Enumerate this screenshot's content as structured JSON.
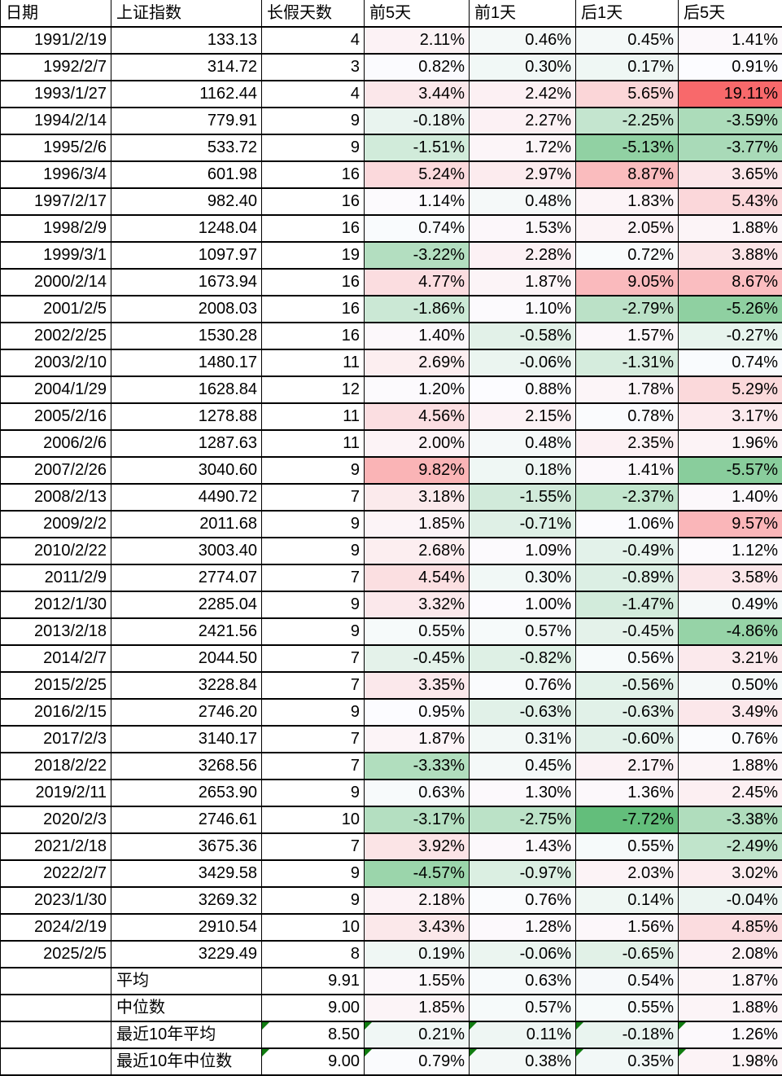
{
  "chart_data": {
    "type": "table",
    "columns": [
      "日期",
      "上证指数",
      "长假天数",
      "前5天",
      "前1天",
      "后1天",
      "后5天"
    ],
    "rows": [
      {
        "date": "1991/2/19",
        "index": "133.13",
        "days": "4",
        "pre5": 2.11,
        "pre1": 0.46,
        "post1": 0.45,
        "post5": 1.41
      },
      {
        "date": "1992/2/7",
        "index": "314.72",
        "days": "3",
        "pre5": 0.82,
        "pre1": 0.3,
        "post1": 0.17,
        "post5": 0.91
      },
      {
        "date": "1993/1/27",
        "index": "1162.44",
        "days": "4",
        "pre5": 3.44,
        "pre1": 2.42,
        "post1": 5.65,
        "post5": 19.11
      },
      {
        "date": "1994/2/14",
        "index": "779.91",
        "days": "9",
        "pre5": -0.18,
        "pre1": 2.27,
        "post1": -2.25,
        "post5": -3.59
      },
      {
        "date": "1995/2/6",
        "index": "533.72",
        "days": "9",
        "pre5": -1.51,
        "pre1": 1.72,
        "post1": -5.13,
        "post5": -3.77
      },
      {
        "date": "1996/3/4",
        "index": "601.98",
        "days": "16",
        "pre5": 5.24,
        "pre1": 2.97,
        "post1": 8.87,
        "post5": 3.65
      },
      {
        "date": "1997/2/17",
        "index": "982.40",
        "days": "16",
        "pre5": 1.14,
        "pre1": 0.48,
        "post1": 1.83,
        "post5": 5.43
      },
      {
        "date": "1998/2/9",
        "index": "1248.04",
        "days": "16",
        "pre5": 0.74,
        "pre1": 1.53,
        "post1": 2.05,
        "post5": 1.88
      },
      {
        "date": "1999/3/1",
        "index": "1097.97",
        "days": "19",
        "pre5": -3.22,
        "pre1": 2.28,
        "post1": 0.72,
        "post5": 3.88
      },
      {
        "date": "2000/2/14",
        "index": "1673.94",
        "days": "16",
        "pre5": 4.77,
        "pre1": 1.87,
        "post1": 9.05,
        "post5": 8.67
      },
      {
        "date": "2001/2/5",
        "index": "2008.03",
        "days": "16",
        "pre5": -1.86,
        "pre1": 1.1,
        "post1": -2.79,
        "post5": -5.26
      },
      {
        "date": "2002/2/25",
        "index": "1530.28",
        "days": "16",
        "pre5": 1.4,
        "pre1": -0.58,
        "post1": 1.57,
        "post5": -0.27
      },
      {
        "date": "2003/2/10",
        "index": "1480.17",
        "days": "11",
        "pre5": 2.69,
        "pre1": -0.06,
        "post1": -1.31,
        "post5": 0.74
      },
      {
        "date": "2004/1/29",
        "index": "1628.84",
        "days": "12",
        "pre5": 1.2,
        "pre1": 0.88,
        "post1": 1.78,
        "post5": 5.29
      },
      {
        "date": "2005/2/16",
        "index": "1278.88",
        "days": "11",
        "pre5": 4.56,
        "pre1": 2.15,
        "post1": 0.78,
        "post5": 3.17
      },
      {
        "date": "2006/2/6",
        "index": "1287.63",
        "days": "11",
        "pre5": 2.0,
        "pre1": 0.48,
        "post1": 2.35,
        "post5": 1.96
      },
      {
        "date": "2007/2/26",
        "index": "3040.60",
        "days": "9",
        "pre5": 9.82,
        "pre1": 0.18,
        "post1": 1.41,
        "post5": -5.57
      },
      {
        "date": "2008/2/13",
        "index": "4490.72",
        "days": "7",
        "pre5": 3.18,
        "pre1": -1.55,
        "post1": -2.37,
        "post5": 1.4
      },
      {
        "date": "2009/2/2",
        "index": "2011.68",
        "days": "9",
        "pre5": 1.85,
        "pre1": -0.71,
        "post1": 1.06,
        "post5": 9.57
      },
      {
        "date": "2010/2/22",
        "index": "3003.40",
        "days": "9",
        "pre5": 2.68,
        "pre1": 1.09,
        "post1": -0.49,
        "post5": 1.12
      },
      {
        "date": "2011/2/9",
        "index": "2774.07",
        "days": "7",
        "pre5": 4.54,
        "pre1": 0.3,
        "post1": -0.89,
        "post5": 3.58
      },
      {
        "date": "2012/1/30",
        "index": "2285.04",
        "days": "9",
        "pre5": 3.32,
        "pre1": 1.0,
        "post1": -1.47,
        "post5": 0.49
      },
      {
        "date": "2013/2/18",
        "index": "2421.56",
        "days": "9",
        "pre5": 0.55,
        "pre1": 0.57,
        "post1": -0.45,
        "post5": -4.86
      },
      {
        "date": "2014/2/7",
        "index": "2044.50",
        "days": "7",
        "pre5": -0.45,
        "pre1": -0.82,
        "post1": 0.56,
        "post5": 3.21
      },
      {
        "date": "2015/2/25",
        "index": "3228.84",
        "days": "7",
        "pre5": 3.35,
        "pre1": 0.76,
        "post1": -0.56,
        "post5": 0.5
      },
      {
        "date": "2016/2/15",
        "index": "2746.20",
        "days": "9",
        "pre5": 0.95,
        "pre1": -0.63,
        "post1": -0.63,
        "post5": 3.49
      },
      {
        "date": "2017/2/3",
        "index": "3140.17",
        "days": "7",
        "pre5": 1.87,
        "pre1": 0.31,
        "post1": -0.6,
        "post5": 0.76
      },
      {
        "date": "2018/2/22",
        "index": "3268.56",
        "days": "7",
        "pre5": -3.33,
        "pre1": 0.45,
        "post1": 2.17,
        "post5": 1.88
      },
      {
        "date": "2019/2/11",
        "index": "2653.90",
        "days": "9",
        "pre5": 0.63,
        "pre1": 1.3,
        "post1": 1.36,
        "post5": 2.45
      },
      {
        "date": "2020/2/3",
        "index": "2746.61",
        "days": "10",
        "pre5": -3.17,
        "pre1": -2.75,
        "post1": -7.72,
        "post5": -3.38
      },
      {
        "date": "2021/2/18",
        "index": "3675.36",
        "days": "7",
        "pre5": 3.92,
        "pre1": 1.43,
        "post1": 0.55,
        "post5": -2.49
      },
      {
        "date": "2022/2/7",
        "index": "3429.58",
        "days": "9",
        "pre5": -4.57,
        "pre1": -0.97,
        "post1": 2.03,
        "post5": 3.02
      },
      {
        "date": "2023/1/30",
        "index": "3269.32",
        "days": "9",
        "pre5": 2.18,
        "pre1": 0.76,
        "post1": 0.14,
        "post5": -0.04
      },
      {
        "date": "2024/2/19",
        "index": "2910.54",
        "days": "10",
        "pre5": 3.43,
        "pre1": 1.28,
        "post1": 1.56,
        "post5": 4.85
      },
      {
        "date": "2025/2/5",
        "index": "3229.49",
        "days": "8",
        "pre5": 0.19,
        "pre1": -0.06,
        "post1": -0.65,
        "post5": 2.08
      }
    ],
    "summary_rows": [
      {
        "label": "平均",
        "days": "9.91",
        "pre5": 1.55,
        "pre1": 0.63,
        "post1": 0.54,
        "post5": 1.87,
        "flagged": false
      },
      {
        "label": "中位数",
        "days": "9.00",
        "pre5": 1.85,
        "pre1": 0.57,
        "post1": 0.55,
        "post5": 1.88,
        "flagged": false
      },
      {
        "label": "最近10年平均",
        "days": "8.50",
        "pre5": 0.21,
        "pre1": 0.11,
        "post1": -0.18,
        "post5": 1.26,
        "flagged": true
      },
      {
        "label": "最近10年中位数",
        "days": "9.00",
        "pre5": 0.79,
        "pre1": 0.38,
        "post1": 0.35,
        "post5": 1.98,
        "flagged": true
      }
    ],
    "color_scale": {
      "negative_end": "#63BE7B",
      "midpoint": "#FCFCFF",
      "positive_end": "#F8696B"
    },
    "flag_triangle_color": "#107C10",
    "grid_border_color": "#000000",
    "value_range": {
      "min": -7.72,
      "max": 19.11
    }
  }
}
